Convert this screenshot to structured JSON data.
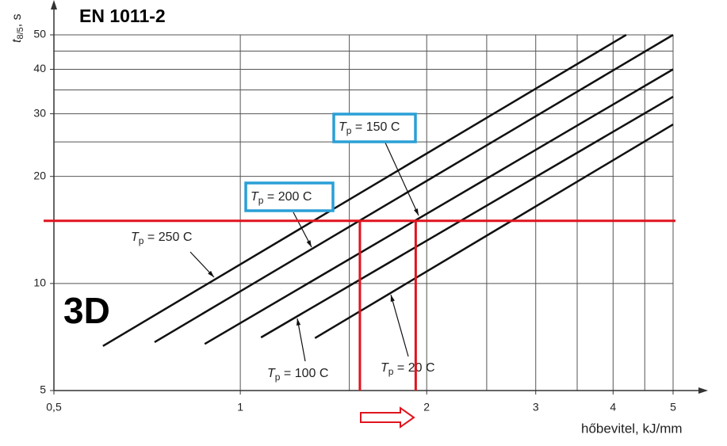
{
  "chart_data": {
    "type": "line",
    "title": "EN 1011-2",
    "annotation": "3D",
    "y_label": {
      "symbol": "t",
      "subscript": "8/5",
      "unit": ", s"
    },
    "x_label": "hőbevitel, kJ/mm",
    "log_x": true,
    "log_y": true,
    "xlim": [
      0.5,
      5
    ],
    "ylim": [
      5,
      50
    ],
    "xticks": [
      {
        "value": 0.5,
        "label": "0,5"
      },
      1,
      2,
      3,
      4,
      5
    ],
    "yticks": [
      5,
      10,
      20,
      30,
      40,
      50
    ],
    "xgrid": [
      0.5,
      1,
      1.5,
      2,
      2.5,
      3,
      3.5,
      4,
      4.5,
      5
    ],
    "ygrid": [
      5,
      10,
      15,
      20,
      25,
      30,
      35,
      40,
      45,
      50
    ],
    "series": [
      {
        "name": "Tp = 250 C",
        "color": "#111111",
        "x": [
          0.6,
          4.2
        ],
        "values": [
          6.67,
          50
        ]
      },
      {
        "name": "Tp = 200 C",
        "color": "#111111",
        "x": [
          0.727,
          5
        ],
        "values": [
          6.84,
          50
        ],
        "highlight": "#2a9fd6"
      },
      {
        "name": "Tp = 150 C",
        "color": "#111111",
        "x": [
          0.876,
          5
        ],
        "values": [
          6.76,
          40
        ],
        "highlight": "#2a9fd6"
      },
      {
        "name": "Tp = 100 C",
        "color": "#111111",
        "x": [
          1.08,
          5
        ],
        "values": [
          7.05,
          33.5
        ]
      },
      {
        "name": "Tp = 20 C",
        "color": "#111111",
        "x": [
          1.32,
          5
        ],
        "values": [
          7.02,
          28.0
        ]
      }
    ],
    "reference": {
      "y": 15,
      "x": [
        1.56,
        1.92
      ],
      "color": "#e0141e"
    }
  }
}
